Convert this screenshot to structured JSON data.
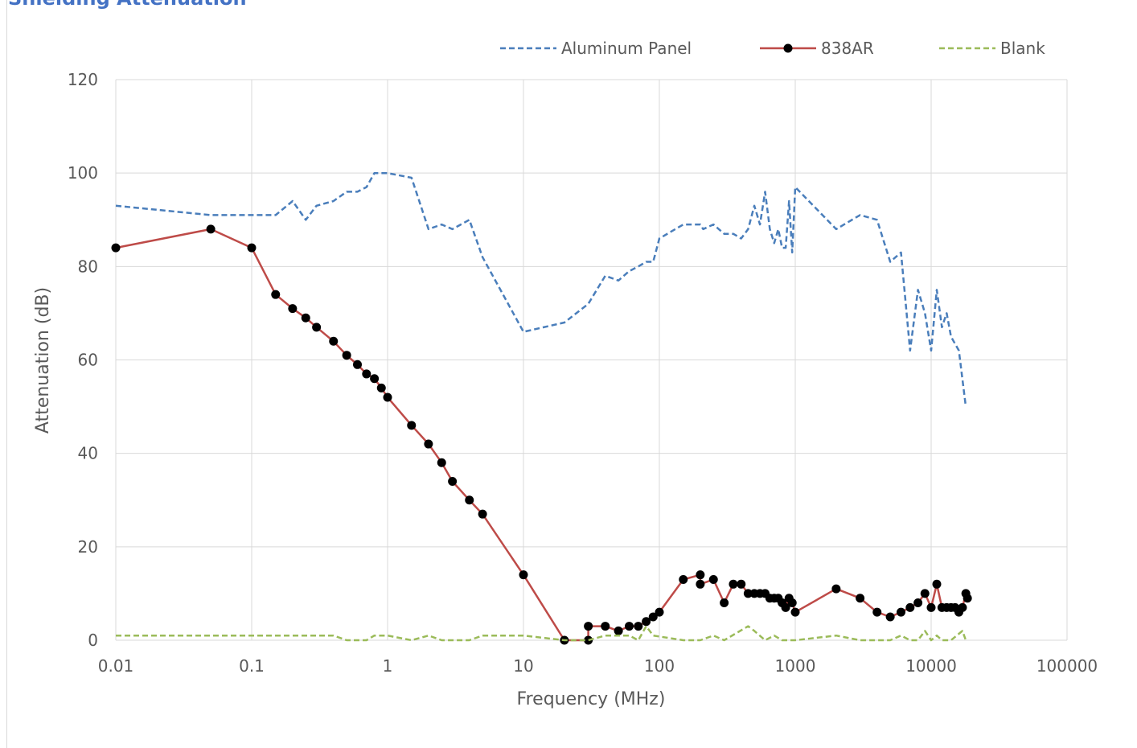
{
  "chart_data": {
    "type": "line",
    "title": "Shielding Attenuation",
    "x_label": "Frequency (MHz)",
    "y_label": "Attenuation (dB)",
    "x_scale": "log",
    "xlim": [
      0.01,
      100000
    ],
    "xticks": [
      0.01,
      0.1,
      1,
      10,
      100,
      1000,
      10000,
      100000
    ],
    "ylim": [
      0,
      120
    ],
    "yticks": [
      0,
      20,
      40,
      60,
      80,
      100,
      120
    ],
    "grid": true,
    "legend": "top",
    "series": [
      {
        "name": "Aluminum Panel",
        "color": "#4a7ebb",
        "style": "dashed",
        "x": [
          0.01,
          0.05,
          0.1,
          0.15,
          0.2,
          0.25,
          0.3,
          0.4,
          0.5,
          0.6,
          0.7,
          0.8,
          1,
          1.5,
          2,
          2.5,
          3,
          4,
          5,
          10,
          20,
          30,
          40,
          50,
          60,
          70,
          80,
          90,
          100,
          150,
          200,
          210,
          250,
          300,
          350,
          400,
          450,
          500,
          550,
          600,
          650,
          700,
          750,
          800,
          850,
          900,
          950,
          1000,
          2000,
          3000,
          4000,
          5000,
          6000,
          7000,
          8000,
          9000,
          10000,
          11000,
          12000,
          13000,
          14000,
          16000,
          18000
        ],
        "values": [
          93,
          91,
          91,
          91,
          94,
          90,
          93,
          94,
          96,
          96,
          97,
          100,
          100,
          99,
          88,
          89,
          88,
          90,
          82,
          66,
          68,
          72,
          78,
          77,
          79,
          80,
          81,
          81,
          86,
          89,
          89,
          88,
          89,
          87,
          87,
          86,
          88,
          93,
          89,
          96,
          88,
          85,
          88,
          84,
          84,
          94,
          83,
          97,
          88,
          91,
          90,
          81,
          83,
          62,
          75,
          70,
          62,
          75,
          67,
          70,
          65,
          62,
          50
        ]
      },
      {
        "name": "838AR",
        "color": "#be4b48",
        "marker_color": "#000000",
        "style": "solid",
        "x": [
          0.01,
          0.05,
          0.1,
          0.15,
          0.2,
          0.25,
          0.3,
          0.4,
          0.5,
          0.6,
          0.7,
          0.8,
          0.9,
          1,
          1.5,
          2,
          2.5,
          3,
          4,
          5,
          10,
          20,
          30,
          30,
          40,
          50,
          60,
          70,
          80,
          90,
          100,
          150,
          200,
          200,
          250,
          300,
          350,
          400,
          450,
          500,
          550,
          600,
          650,
          700,
          750,
          800,
          850,
          900,
          950,
          1000,
          2000,
          3000,
          4000,
          5000,
          6000,
          7000,
          8000,
          9000,
          10000,
          11000,
          12000,
          13000,
          14000,
          15000,
          16000,
          17000,
          18000,
          18500
        ],
        "values": [
          84,
          88,
          84,
          74,
          71,
          69,
          67,
          64,
          61,
          59,
          57,
          56,
          54,
          52,
          46,
          42,
          38,
          34,
          30,
          27,
          14,
          0,
          0,
          3,
          3,
          2,
          3,
          3,
          4,
          5,
          6,
          13,
          14,
          12,
          13,
          8,
          12,
          12,
          10,
          10,
          10,
          10,
          9,
          9,
          9,
          8,
          7,
          9,
          8,
          6,
          11,
          9,
          6,
          5,
          6,
          7,
          8,
          10,
          7,
          12,
          7,
          7,
          7,
          7,
          6,
          7,
          10,
          9
        ]
      },
      {
        "name": "Blank",
        "color": "#9bbb59",
        "style": "dashed",
        "x": [
          0.01,
          0.4,
          0.5,
          0.7,
          0.8,
          1,
          1.5,
          2,
          2.5,
          4,
          5,
          10,
          20,
          30,
          40,
          60,
          70,
          80,
          90,
          150,
          200,
          250,
          300,
          450,
          500,
          600,
          700,
          800,
          1000,
          2000,
          3000,
          5000,
          6000,
          7000,
          8000,
          9000,
          10000,
          11000,
          12000,
          14000,
          17000,
          18000
        ],
        "values": [
          1,
          1,
          0,
          0,
          1,
          1,
          0,
          1,
          0,
          0,
          1,
          1,
          0,
          0,
          1,
          1,
          0,
          3,
          1,
          0,
          0,
          1,
          0,
          3,
          2,
          0,
          1,
          0,
          0,
          1,
          0,
          0,
          1,
          0,
          0,
          2,
          0,
          1,
          0,
          0,
          2,
          0
        ]
      }
    ]
  }
}
